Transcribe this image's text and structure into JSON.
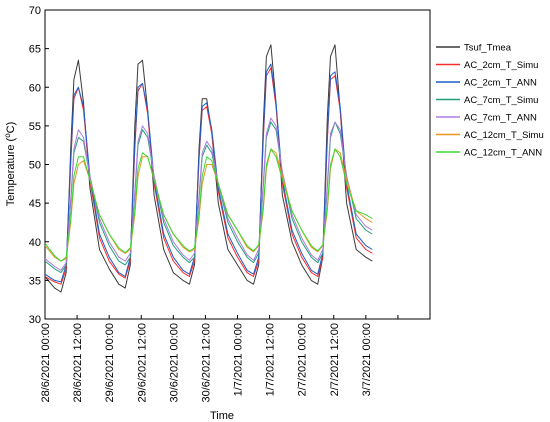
{
  "chart_data": {
    "type": "line",
    "xlabel": "Time",
    "ylabel_main": "Temperature (",
    "ylabel_sup": "o",
    "ylabel_end": "C)",
    "xlim": [
      0,
      6
    ],
    "ylim": [
      30,
      70
    ],
    "y_ticks": [
      30,
      35,
      40,
      45,
      50,
      55,
      60,
      65,
      70
    ],
    "x_ticks": [
      0,
      0.5,
      1,
      1.5,
      2,
      2.5,
      3,
      3.5,
      4,
      4.5,
      5,
      5.5,
      6
    ],
    "x_tick_labels": [
      "28/6/2021 00:00",
      "28/6/2021 12:00",
      "29/6/2021 00:00",
      "29/6/2021 12:00",
      "30/6/2021 00:00",
      "30/6/2021 12:00",
      "1/7/2021 00:00",
      "1/7/2021 12:00",
      "2/7/2021 00:00",
      "2/7/2021 12:00",
      "3/7/2021 00:00"
    ],
    "x_tick_label_positions": [
      0,
      0.5,
      1,
      1.5,
      2,
      2.5,
      3,
      3.5,
      4,
      4.5,
      5
    ],
    "grid": false,
    "legend_position": "right",
    "series": [
      {
        "name": "Tsuf_Tmea",
        "color": "#3a3a3a",
        "width": 1.0,
        "x": [
          0.0,
          0.15,
          0.25,
          0.33,
          0.4,
          0.45,
          0.52,
          0.6,
          0.7,
          0.85,
          1.0,
          1.15,
          1.25,
          1.33,
          1.4,
          1.45,
          1.52,
          1.6,
          1.7,
          1.85,
          2.0,
          2.15,
          2.25,
          2.33,
          2.4,
          2.45,
          2.52,
          2.6,
          2.7,
          2.85,
          3.0,
          3.15,
          3.25,
          3.33,
          3.4,
          3.45,
          3.52,
          3.6,
          3.7,
          3.85,
          4.0,
          4.15,
          4.25,
          4.33,
          4.4,
          4.45,
          4.52,
          4.6,
          4.7,
          4.85,
          5.0,
          5.1
        ],
        "y": [
          35.5,
          34.0,
          33.5,
          36.0,
          52.0,
          61.0,
          63.5,
          58.0,
          47.0,
          39.0,
          36.5,
          34.5,
          34.0,
          37.0,
          55.0,
          63.0,
          63.5,
          57.0,
          46.0,
          39.0,
          36.0,
          35.0,
          34.5,
          37.0,
          52.0,
          58.5,
          58.5,
          54.0,
          45.0,
          39.0,
          37.0,
          35.0,
          34.5,
          37.0,
          55.0,
          64.0,
          65.5,
          58.0,
          46.0,
          40.0,
          37.0,
          35.0,
          34.5,
          38.0,
          56.0,
          64.0,
          65.5,
          57.0,
          45.0,
          39.0,
          38.0,
          37.5
        ]
      },
      {
        "name": "AC_2cm_T_Simu",
        "color": "#ff2a2a",
        "width": 1.0,
        "x": [
          0.0,
          0.15,
          0.25,
          0.33,
          0.4,
          0.45,
          0.52,
          0.6,
          0.7,
          0.85,
          1.0,
          1.15,
          1.25,
          1.33,
          1.4,
          1.45,
          1.52,
          1.6,
          1.7,
          1.85,
          2.0,
          2.15,
          2.25,
          2.33,
          2.4,
          2.45,
          2.52,
          2.6,
          2.7,
          2.85,
          3.0,
          3.15,
          3.25,
          3.33,
          3.4,
          3.45,
          3.52,
          3.6,
          3.7,
          3.85,
          4.0,
          4.15,
          4.25,
          4.33,
          4.4,
          4.45,
          4.52,
          4.6,
          4.7,
          4.85,
          5.0,
          5.1
        ],
        "y": [
          35.5,
          34.8,
          34.5,
          36.5,
          50.0,
          58.5,
          60.0,
          57.0,
          48.0,
          40.5,
          37.5,
          35.8,
          35.3,
          37.5,
          52.0,
          59.5,
          60.5,
          56.5,
          47.5,
          40.5,
          37.5,
          36.0,
          35.5,
          37.5,
          50.5,
          57.0,
          57.5,
          54.0,
          46.5,
          40.5,
          38.0,
          36.0,
          35.5,
          37.5,
          53.0,
          61.5,
          62.5,
          57.5,
          47.5,
          41.0,
          38.0,
          36.0,
          35.5,
          38.0,
          53.0,
          61.0,
          61.5,
          57.0,
          47.0,
          40.5,
          39.0,
          38.5
        ]
      },
      {
        "name": "AC_2cm_T_ANN",
        "color": "#1f5fc8",
        "width": 1.0,
        "x": [
          0.0,
          0.15,
          0.25,
          0.33,
          0.4,
          0.45,
          0.52,
          0.6,
          0.7,
          0.85,
          1.0,
          1.15,
          1.25,
          1.33,
          1.4,
          1.45,
          1.52,
          1.6,
          1.7,
          1.85,
          2.0,
          2.15,
          2.25,
          2.33,
          2.4,
          2.45,
          2.52,
          2.6,
          2.7,
          2.85,
          3.0,
          3.15,
          3.25,
          3.33,
          3.4,
          3.45,
          3.52,
          3.6,
          3.7,
          3.85,
          4.0,
          4.15,
          4.25,
          4.33,
          4.4,
          4.45,
          4.52,
          4.6,
          4.7,
          4.85,
          5.0,
          5.1
        ],
        "y": [
          35.8,
          35.0,
          34.8,
          37.0,
          50.5,
          59.0,
          60.0,
          57.5,
          48.5,
          41.0,
          38.0,
          36.0,
          35.5,
          38.0,
          52.5,
          60.0,
          60.5,
          57.0,
          48.0,
          41.0,
          38.0,
          36.3,
          35.8,
          38.0,
          51.0,
          57.5,
          58.0,
          54.5,
          47.0,
          41.0,
          38.5,
          36.3,
          35.8,
          38.0,
          53.5,
          62.0,
          63.0,
          58.0,
          48.0,
          41.5,
          38.5,
          36.3,
          35.8,
          38.5,
          53.5,
          61.5,
          62.0,
          57.5,
          47.5,
          41.0,
          39.5,
          39.0
        ]
      },
      {
        "name": "AC_7cm_T_Simu",
        "color": "#1fa07a",
        "width": 1.0,
        "x": [
          0.0,
          0.15,
          0.25,
          0.33,
          0.4,
          0.45,
          0.52,
          0.6,
          0.7,
          0.85,
          1.0,
          1.15,
          1.25,
          1.33,
          1.4,
          1.45,
          1.52,
          1.6,
          1.7,
          1.85,
          2.0,
          2.15,
          2.25,
          2.33,
          2.4,
          2.45,
          2.52,
          2.6,
          2.7,
          2.85,
          3.0,
          3.15,
          3.25,
          3.33,
          3.4,
          3.45,
          3.52,
          3.6,
          3.7,
          3.85,
          4.0,
          4.15,
          4.25,
          4.33,
          4.4,
          4.45,
          4.52,
          4.6,
          4.7,
          4.85,
          5.0,
          5.1
        ],
        "y": [
          37.5,
          36.5,
          36.0,
          37.0,
          45.0,
          51.5,
          53.5,
          53.0,
          48.5,
          42.5,
          39.5,
          37.5,
          37.0,
          38.0,
          46.0,
          52.5,
          54.5,
          53.5,
          48.5,
          42.5,
          39.5,
          38.0,
          37.3,
          38.0,
          45.5,
          51.0,
          52.5,
          51.5,
          47.5,
          42.5,
          40.0,
          38.0,
          37.3,
          38.5,
          47.0,
          53.5,
          55.5,
          54.5,
          49.0,
          43.0,
          40.0,
          38.0,
          37.3,
          38.5,
          47.0,
          53.5,
          55.5,
          54.0,
          48.5,
          43.0,
          41.5,
          41.0
        ]
      },
      {
        "name": "AC_7cm_T_ANN",
        "color": "#b07ae0",
        "width": 1.0,
        "x": [
          0.0,
          0.15,
          0.25,
          0.33,
          0.4,
          0.45,
          0.52,
          0.6,
          0.7,
          0.85,
          1.0,
          1.15,
          1.25,
          1.33,
          1.4,
          1.45,
          1.52,
          1.6,
          1.7,
          1.85,
          2.0,
          2.15,
          2.25,
          2.33,
          2.4,
          2.45,
          2.52,
          2.6,
          2.7,
          2.85,
          3.0,
          3.15,
          3.25,
          3.33,
          3.4,
          3.45,
          3.52,
          3.6,
          3.7,
          3.85,
          4.0,
          4.15,
          4.25,
          4.33,
          4.4,
          4.45,
          4.52,
          4.6,
          4.7,
          4.85,
          5.0,
          5.1
        ],
        "y": [
          37.8,
          36.8,
          36.3,
          37.3,
          45.5,
          52.0,
          54.5,
          53.5,
          48.5,
          43.0,
          40.0,
          38.0,
          37.5,
          38.5,
          46.5,
          53.0,
          55.0,
          54.0,
          48.5,
          43.0,
          40.0,
          38.3,
          37.6,
          38.5,
          46.0,
          51.5,
          53.0,
          52.0,
          47.5,
          43.0,
          40.5,
          38.3,
          37.6,
          39.0,
          47.5,
          54.0,
          56.0,
          55.0,
          49.0,
          43.5,
          40.5,
          38.3,
          37.6,
          39.0,
          47.5,
          54.0,
          55.5,
          54.5,
          48.5,
          43.5,
          42.0,
          41.5
        ]
      },
      {
        "name": "AC_12cm_T_Simu",
        "color": "#e8961e",
        "width": 1.0,
        "x": [
          0.0,
          0.15,
          0.25,
          0.33,
          0.4,
          0.45,
          0.52,
          0.6,
          0.7,
          0.85,
          1.0,
          1.15,
          1.25,
          1.33,
          1.4,
          1.45,
          1.52,
          1.6,
          1.7,
          1.85,
          2.0,
          2.15,
          2.25,
          2.33,
          2.4,
          2.45,
          2.52,
          2.6,
          2.7,
          2.85,
          3.0,
          3.15,
          3.25,
          3.33,
          3.4,
          3.45,
          3.52,
          3.6,
          3.7,
          3.85,
          4.0,
          4.15,
          4.25,
          4.33,
          4.4,
          4.45,
          4.52,
          4.6,
          4.7,
          4.85,
          5.0,
          5.1
        ],
        "y": [
          39.5,
          38.0,
          37.5,
          37.8,
          42.5,
          47.5,
          50.0,
          50.5,
          48.0,
          43.5,
          41.0,
          39.0,
          38.5,
          39.0,
          43.5,
          48.5,
          51.0,
          51.0,
          48.0,
          43.5,
          41.0,
          39.3,
          38.7,
          39.0,
          43.0,
          47.5,
          50.0,
          50.0,
          47.5,
          43.5,
          41.5,
          39.3,
          38.7,
          39.5,
          44.0,
          49.5,
          52.0,
          51.5,
          48.5,
          44.0,
          41.5,
          39.3,
          38.7,
          39.5,
          44.0,
          49.5,
          52.0,
          51.5,
          48.0,
          44.0,
          43.0,
          42.5
        ]
      },
      {
        "name": "AC_12cm_T_ANN",
        "color": "#39d832",
        "width": 1.0,
        "x": [
          0.0,
          0.15,
          0.25,
          0.33,
          0.4,
          0.45,
          0.52,
          0.6,
          0.7,
          0.85,
          1.0,
          1.15,
          1.25,
          1.33,
          1.4,
          1.45,
          1.52,
          1.6,
          1.7,
          1.85,
          2.0,
          2.15,
          2.25,
          2.33,
          2.4,
          2.45,
          2.52,
          2.6,
          2.7,
          2.85,
          3.0,
          3.15,
          3.25,
          3.33,
          3.4,
          3.45,
          3.52,
          3.6,
          3.7,
          3.85,
          4.0,
          4.15,
          4.25,
          4.33,
          4.4,
          4.45,
          4.52,
          4.6,
          4.7,
          4.85,
          5.0,
          5.1
        ],
        "y": [
          39.8,
          38.2,
          37.5,
          38.0,
          43.0,
          48.5,
          51.0,
          51.0,
          48.0,
          43.5,
          41.0,
          39.2,
          38.6,
          39.2,
          44.0,
          49.5,
          51.5,
          51.0,
          48.0,
          43.5,
          41.0,
          39.5,
          38.8,
          39.2,
          43.5,
          48.5,
          51.0,
          50.5,
          47.5,
          43.5,
          41.5,
          39.5,
          38.8,
          39.6,
          44.5,
          50.0,
          52.0,
          51.0,
          48.0,
          44.0,
          41.5,
          39.5,
          38.8,
          39.6,
          44.5,
          50.0,
          52.0,
          51.0,
          47.5,
          44.0,
          43.5,
          43.0
        ]
      }
    ]
  }
}
